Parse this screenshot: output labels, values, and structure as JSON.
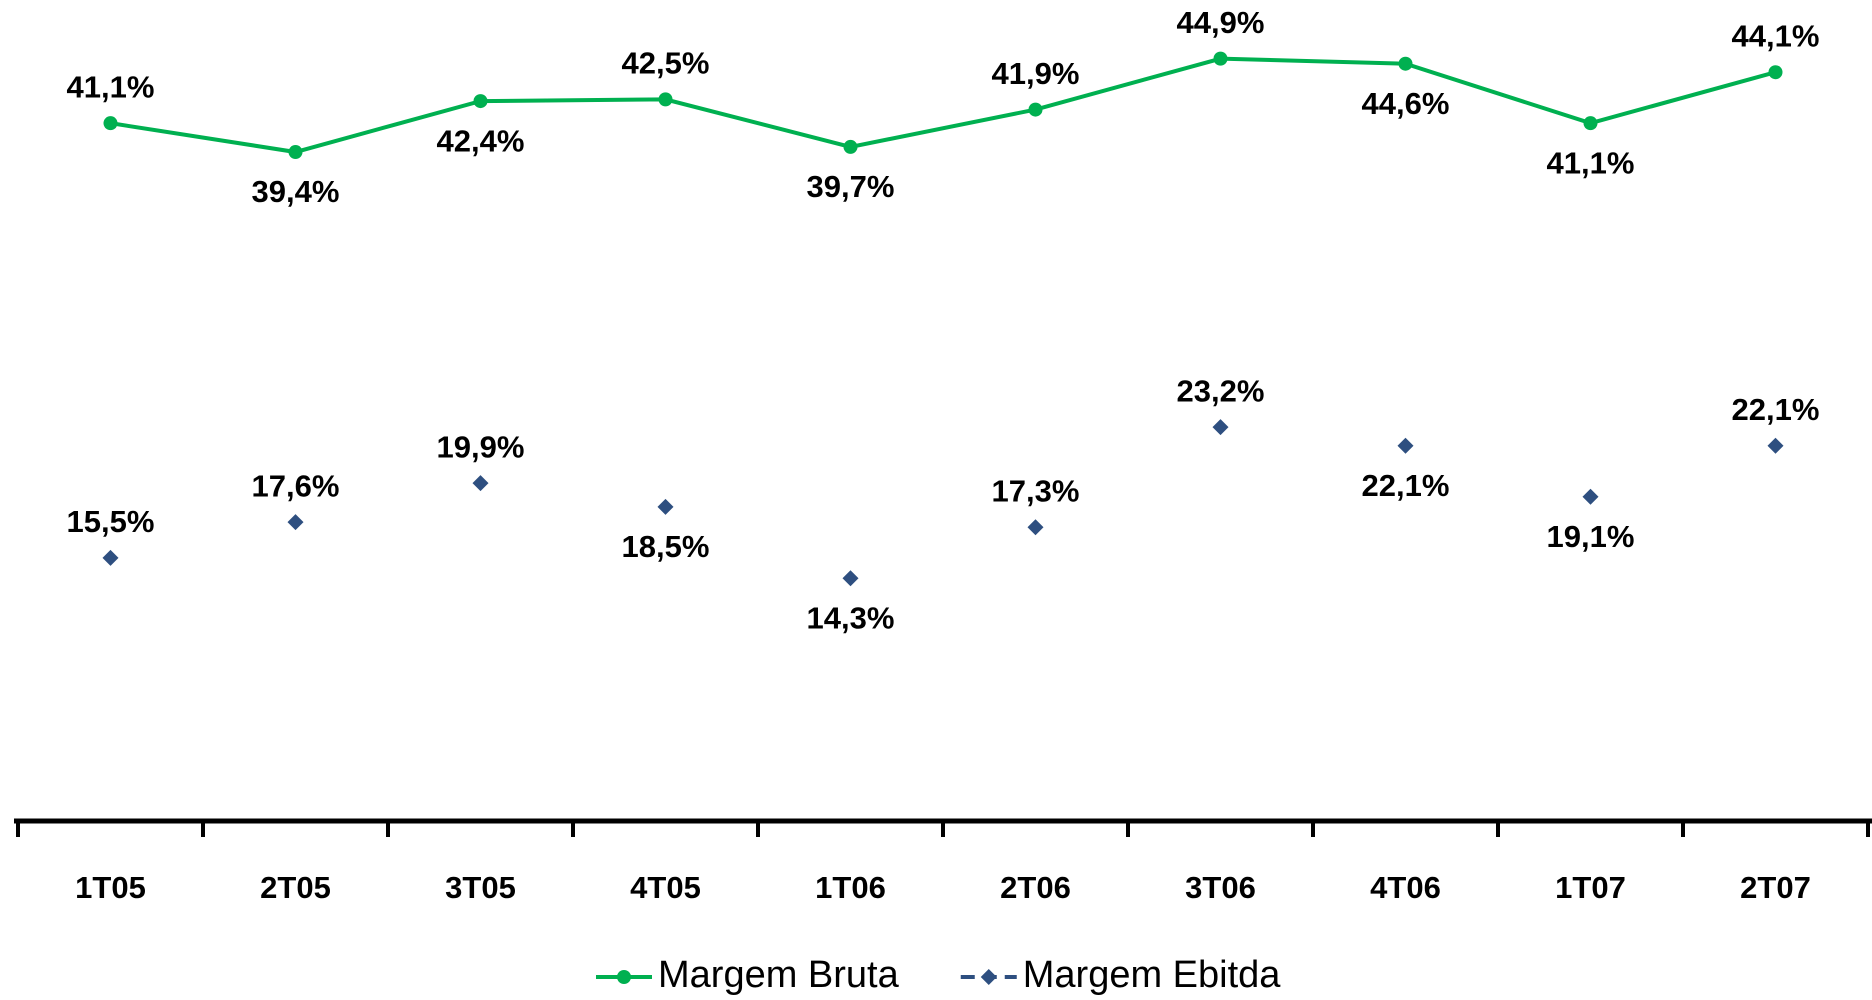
{
  "chart_data": {
    "type": "line",
    "categories": [
      "1T05",
      "2T05",
      "3T05",
      "4T05",
      "1T06",
      "2T06",
      "3T06",
      "4T06",
      "1T07",
      "2T07"
    ],
    "series": [
      {
        "name": "Margem Bruta",
        "color": "#00b050",
        "marker": "circle",
        "line": true,
        "values": [
          41.1,
          39.4,
          42.4,
          42.5,
          39.7,
          41.9,
          44.9,
          44.6,
          41.1,
          44.1
        ],
        "value_labels": [
          "41,1%",
          "39,4%",
          "42,4%",
          "42,5%",
          "39,7%",
          "41,9%",
          "44,9%",
          "44,6%",
          "41,1%",
          "44,1%"
        ]
      },
      {
        "name": "Margem Ebitda",
        "color": "#2e4f80",
        "marker": "diamond",
        "line": false,
        "values": [
          15.5,
          17.6,
          19.9,
          18.5,
          14.3,
          17.3,
          23.2,
          22.1,
          19.1,
          22.1
        ],
        "value_labels": [
          "15,5%",
          "17,6%",
          "19,9%",
          "18,5%",
          "14,3%",
          "17,3%",
          "23,2%",
          "22,1%",
          "19,1%",
          "22,1%"
        ]
      }
    ],
    "ylim": [
      0,
      48
    ]
  }
}
